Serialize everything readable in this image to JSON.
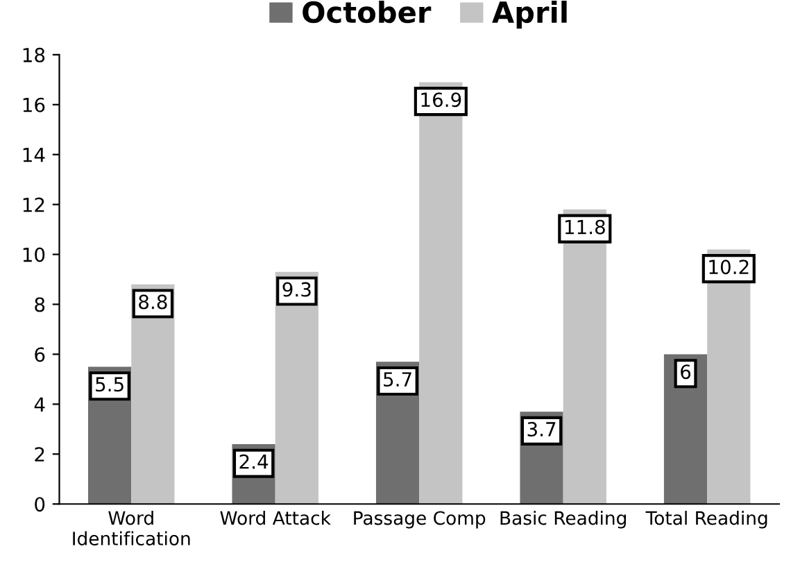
{
  "chart_data": {
    "type": "bar",
    "categories": [
      "Word\nIdentification",
      "Word Attack",
      "Passage Comp",
      "Basic Reading",
      "Total Reading"
    ],
    "series": [
      {
        "name": "October",
        "color": "#6f6f6f",
        "values": [
          5.5,
          2.4,
          5.7,
          3.7,
          6
        ]
      },
      {
        "name": "April",
        "color": "#c4c4c4",
        "values": [
          8.8,
          9.3,
          16.9,
          11.8,
          10.2
        ]
      }
    ],
    "ylim": [
      0,
      18
    ],
    "yticks": [
      0,
      2,
      4,
      6,
      8,
      10,
      12,
      14,
      16,
      18
    ],
    "grid": false,
    "legend": "top",
    "data_labels": true
  }
}
